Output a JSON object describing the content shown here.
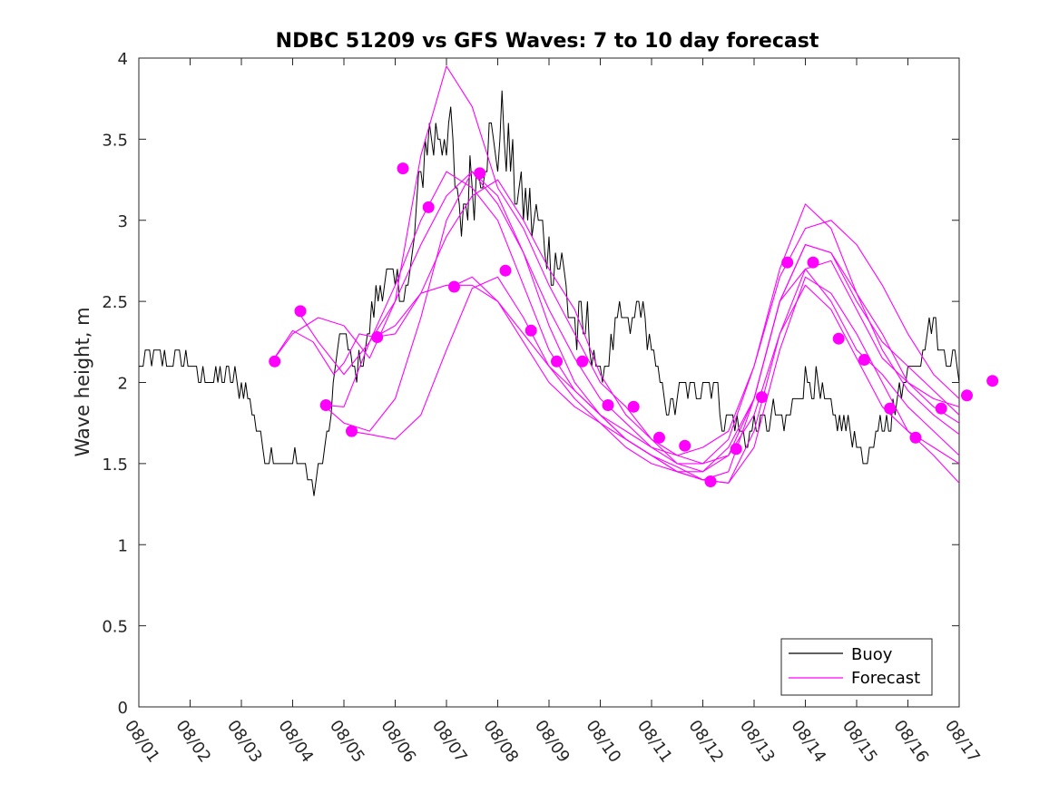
{
  "chart_data": {
    "type": "line",
    "title": "NDBC 51209 vs GFS Waves: 7 to 10 day forecast",
    "xlabel": "",
    "ylabel": "Wave height, m",
    "xlim_days": [
      0,
      16
    ],
    "ylim": [
      0,
      4
    ],
    "x_tick_labels": [
      "08/01",
      "08/02",
      "08/03",
      "08/04",
      "08/05",
      "08/06",
      "08/07",
      "08/08",
      "08/09",
      "08/10",
      "08/11",
      "08/12",
      "08/13",
      "08/14",
      "08/15",
      "08/16",
      "08/17"
    ],
    "y_tick_labels": [
      "0",
      "0.5",
      "1",
      "1.5",
      "2",
      "2.5",
      "3",
      "3.5",
      "4"
    ],
    "y_ticks": [
      0,
      0.5,
      1,
      1.5,
      2,
      2.5,
      3,
      3.5,
      4
    ],
    "legend": {
      "position": "bottom-right",
      "entries": [
        "Buoy",
        "Forecast"
      ]
    },
    "colors": {
      "buoy": "#000000",
      "forecast": "#ff00ff",
      "axis": "#262626"
    },
    "buoy_series": {
      "name": "Buoy",
      "anchors": [
        [
          0,
          2.1
        ],
        [
          0.3,
          2.15
        ],
        [
          0.6,
          2.1
        ],
        [
          0.9,
          2.15
        ],
        [
          1.2,
          2.0
        ],
        [
          1.5,
          2.05
        ],
        [
          1.8,
          2.0
        ],
        [
          2.0,
          2.0
        ],
        [
          2.2,
          1.85
        ],
        [
          2.4,
          1.6
        ],
        [
          2.7,
          1.55
        ],
        [
          2.9,
          1.45
        ],
        [
          3.1,
          1.55
        ],
        [
          3.4,
          1.35
        ],
        [
          3.55,
          1.5
        ],
        [
          3.75,
          1.8
        ],
        [
          3.85,
          2.15
        ],
        [
          4.0,
          2.3
        ],
        [
          4.2,
          2.05
        ],
        [
          4.4,
          2.2
        ],
        [
          4.6,
          2.5
        ],
        [
          4.9,
          2.7
        ],
        [
          5.1,
          2.55
        ],
        [
          5.3,
          2.65
        ],
        [
          5.45,
          3.1
        ],
        [
          5.6,
          3.55
        ],
        [
          5.8,
          3.5
        ],
        [
          6.0,
          3.6
        ],
        [
          6.1,
          3.45
        ],
        [
          6.25,
          2.95
        ],
        [
          6.4,
          3.15
        ],
        [
          6.6,
          3.3
        ],
        [
          6.8,
          3.5
        ],
        [
          7.0,
          3.4
        ],
        [
          7.1,
          3.65
        ],
        [
          7.3,
          3.25
        ],
        [
          7.5,
          3.1
        ],
        [
          7.7,
          3.0
        ],
        [
          8.0,
          2.8
        ],
        [
          8.2,
          2.75
        ],
        [
          8.4,
          2.45
        ],
        [
          8.6,
          2.25
        ],
        [
          8.8,
          2.35
        ],
        [
          9.0,
          2.0
        ],
        [
          9.2,
          2.2
        ],
        [
          9.4,
          2.4
        ],
        [
          9.6,
          2.35
        ],
        [
          9.8,
          2.5
        ],
        [
          10.0,
          2.2
        ],
        [
          10.2,
          1.95
        ],
        [
          10.4,
          1.85
        ],
        [
          10.6,
          1.95
        ],
        [
          10.8,
          1.9
        ],
        [
          11.0,
          2.0
        ],
        [
          11.2,
          2.0
        ],
        [
          11.4,
          1.75
        ],
        [
          11.6,
          1.8
        ],
        [
          11.7,
          1.7
        ],
        [
          11.8,
          1.65
        ],
        [
          12.0,
          1.75
        ],
        [
          12.2,
          1.75
        ],
        [
          12.4,
          1.8
        ],
        [
          12.6,
          1.7
        ],
        [
          12.8,
          1.9
        ],
        [
          13.0,
          2.0
        ],
        [
          13.2,
          2.0
        ],
        [
          13.4,
          1.85
        ],
        [
          13.6,
          1.75
        ],
        [
          13.8,
          1.75
        ],
        [
          14.0,
          1.7
        ],
        [
          14.1,
          1.5
        ],
        [
          14.3,
          1.6
        ],
        [
          14.5,
          1.75
        ],
        [
          14.7,
          1.8
        ],
        [
          14.9,
          2.0
        ],
        [
          15.1,
          2.1
        ],
        [
          15.3,
          2.25
        ],
        [
          15.5,
          2.4
        ],
        [
          15.6,
          2.2
        ],
        [
          15.8,
          2.2
        ],
        [
          16.0,
          2.05
        ]
      ]
    },
    "forecast_series": [
      {
        "name": "Forecast",
        "x": [
          2.6,
          3.0,
          3.5,
          4.0,
          4.5,
          5.0,
          5.5,
          6.0,
          6.5,
          7.0,
          7.5,
          8.0,
          8.5,
          9.0,
          9.5,
          10.0,
          10.5,
          11.0,
          11.5,
          12.0,
          12.5,
          13.0,
          13.5,
          14.0,
          14.5,
          15.0,
          15.5,
          16.0
        ],
        "y": [
          2.13,
          2.3,
          2.4,
          2.35,
          2.15,
          2.5,
          3.4,
          3.95,
          3.7,
          3.2,
          2.95,
          2.6,
          2.3,
          2.0,
          1.85,
          1.65,
          1.5,
          1.45,
          1.55,
          1.9,
          2.5,
          2.85,
          2.8,
          2.55,
          2.3,
          2.0,
          1.85,
          1.75
        ]
      },
      {
        "name": "Forecast",
        "x": [
          3.1,
          3.5,
          4.0,
          4.5,
          5.0,
          5.5,
          6.0,
          6.5,
          7.0,
          7.5,
          8.0,
          8.5,
          9.0,
          9.5,
          10.0,
          10.5,
          11.0,
          11.5,
          12.0,
          12.5,
          13.0,
          13.5,
          14.0,
          14.5,
          15.0,
          15.5,
          16.0
        ],
        "y": [
          2.44,
          2.25,
          2.05,
          2.25,
          2.5,
          2.85,
          3.15,
          3.3,
          3.15,
          2.8,
          2.45,
          2.15,
          1.9,
          1.75,
          1.6,
          1.5,
          1.5,
          1.65,
          2.1,
          2.7,
          3.1,
          2.95,
          2.55,
          2.2,
          1.95,
          1.8,
          1.68
        ]
      },
      {
        "name": "Forecast",
        "x": [
          2.6,
          3.0,
          3.4,
          3.8,
          4.0,
          4.3,
          4.6,
          5.0,
          5.5,
          6.0,
          6.5,
          7.0,
          7.5,
          8.0,
          8.5,
          9.0,
          9.5,
          10.0,
          10.5,
          11.0,
          11.5,
          12.0,
          12.5,
          13.0,
          13.5,
          14.0,
          14.5,
          15.0,
          15.5,
          16.0
        ],
        "y": [
          2.13,
          2.32,
          2.25,
          2.05,
          2.12,
          2.3,
          2.28,
          2.3,
          2.55,
          2.9,
          3.15,
          3.25,
          3.0,
          2.7,
          2.45,
          2.05,
          1.8,
          1.65,
          1.55,
          1.6,
          1.7,
          2.1,
          2.65,
          2.95,
          3.0,
          2.85,
          2.6,
          2.3,
          2.05,
          1.9
        ]
      },
      {
        "name": "Forecast",
        "x": [
          3.6,
          4.0,
          4.5,
          5.0,
          5.5,
          6.0,
          6.5,
          7.0,
          7.5,
          8.0,
          8.5,
          9.0,
          9.5,
          10.0,
          10.5,
          11.0,
          11.5,
          12.0,
          12.5,
          13.0,
          13.5,
          14.0,
          14.5,
          15.0,
          15.5,
          16.0
        ],
        "y": [
          1.86,
          1.85,
          2.25,
          2.6,
          3.0,
          3.3,
          3.2,
          3.0,
          2.6,
          2.2,
          1.95,
          1.8,
          1.7,
          1.6,
          1.55,
          1.5,
          1.55,
          1.8,
          2.3,
          2.7,
          2.75,
          2.45,
          2.15,
          2.0,
          1.9,
          1.85
        ]
      },
      {
        "name": "Forecast",
        "x": [
          3.6,
          4.0,
          4.5,
          5.0,
          5.5,
          6.0,
          6.5,
          7.0,
          7.5,
          8.0,
          8.5,
          9.0,
          9.5,
          10.0,
          10.5,
          11.0,
          11.5,
          12.0,
          12.5,
          13.0,
          13.5,
          14.0,
          14.5,
          15.0,
          15.5,
          16.0
        ],
        "y": [
          1.86,
          1.75,
          1.7,
          1.9,
          2.4,
          3.0,
          3.3,
          3.1,
          2.8,
          2.35,
          2.0,
          1.8,
          1.65,
          1.55,
          1.45,
          1.45,
          1.6,
          1.9,
          2.5,
          2.85,
          2.8,
          2.5,
          2.25,
          2.1,
          1.95,
          1.8
        ]
      },
      {
        "name": "Forecast",
        "x": [
          4.1,
          4.5,
          5.0,
          5.5,
          6.0,
          6.5,
          7.0,
          7.5,
          8.0,
          8.5,
          9.0,
          9.5,
          10.0,
          10.5,
          11.0,
          11.5,
          12.0,
          12.5,
          13.0,
          13.5,
          14.0,
          14.5,
          15.0,
          15.5,
          16.0
        ],
        "y": [
          1.7,
          1.68,
          1.65,
          1.8,
          2.2,
          2.58,
          2.65,
          2.4,
          2.1,
          1.9,
          1.75,
          1.6,
          1.5,
          1.45,
          1.4,
          1.45,
          1.9,
          2.5,
          2.7,
          2.5,
          2.2,
          2.05,
          1.85,
          1.7,
          1.55
        ]
      },
      {
        "name": "Forecast",
        "x": [
          4.6,
          5.0,
          5.5,
          6.0,
          6.5,
          7.0,
          7.5,
          8.0,
          8.5,
          9.0,
          9.5,
          10.0,
          10.5,
          11.0,
          11.5,
          12.0,
          12.5,
          13.0,
          13.5,
          14.0,
          14.5,
          15.0,
          15.5,
          16.0
        ],
        "y": [
          2.28,
          2.35,
          2.55,
          2.6,
          2.6,
          2.5,
          2.3,
          2.1,
          1.95,
          1.8,
          1.65,
          1.55,
          1.45,
          1.4,
          1.38,
          1.7,
          2.3,
          2.6,
          2.45,
          2.15,
          1.85,
          1.7,
          1.6,
          1.5
        ]
      },
      {
        "name": "Forecast",
        "x": [
          6.1,
          6.5,
          7.0,
          7.5,
          8.0,
          8.5,
          9.0,
          9.5,
          10.0,
          10.5,
          11.0,
          11.5,
          12.0,
          12.5,
          13.0,
          13.5,
          14.0,
          14.5,
          15.0,
          15.5,
          16.0
        ],
        "y": [
          2.59,
          2.65,
          2.5,
          2.25,
          2.0,
          1.85,
          1.75,
          1.65,
          1.55,
          1.48,
          1.4,
          1.38,
          1.6,
          2.2,
          2.65,
          2.55,
          2.3,
          2.0,
          1.7,
          1.55,
          1.38
        ]
      }
    ],
    "forecast_markers": [
      [
        2.65,
        2.13
      ],
      [
        3.15,
        2.44
      ],
      [
        3.65,
        1.86
      ],
      [
        4.15,
        1.7
      ],
      [
        4.65,
        2.28
      ],
      [
        5.15,
        3.32
      ],
      [
        5.65,
        3.08
      ],
      [
        6.15,
        2.59
      ],
      [
        6.65,
        3.29
      ],
      [
        7.15,
        2.69
      ],
      [
        7.65,
        2.32
      ],
      [
        8.15,
        2.13
      ],
      [
        8.65,
        2.13
      ],
      [
        9.15,
        1.86
      ],
      [
        9.65,
        1.85
      ],
      [
        10.15,
        1.66
      ],
      [
        10.65,
        1.61
      ],
      [
        11.15,
        1.39
      ],
      [
        11.65,
        1.59
      ],
      [
        12.15,
        1.91
      ],
      [
        12.65,
        2.74
      ],
      [
        13.15,
        2.74
      ],
      [
        13.65,
        2.27
      ],
      [
        14.15,
        2.14
      ],
      [
        14.65,
        1.84
      ],
      [
        15.15,
        1.66
      ],
      [
        15.65,
        1.84
      ],
      [
        16.15,
        1.92
      ],
      [
        16.65,
        2.01
      ]
    ]
  }
}
